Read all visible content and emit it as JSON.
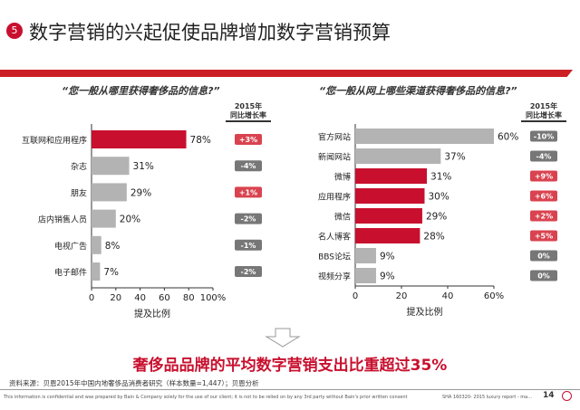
{
  "header": {
    "number": "5",
    "title": "数字营销的兴起促使品牌增加数字营销预算"
  },
  "chart_data": [
    {
      "type": "bar",
      "orientation": "horizontal",
      "title": "“您一般从哪里获得奢侈品的信息?”",
      "xlabel": "提及比例",
      "xlim": [
        0,
        100
      ],
      "xticks": [
        "0",
        "20",
        "40",
        "60",
        "80",
        "100%"
      ],
      "categories": [
        "互联网和应用程序",
        "杂志",
        "朋友",
        "店内销售人员",
        "电视广告",
        "电子邮件"
      ],
      "values": [
        78,
        31,
        29,
        20,
        8,
        7
      ],
      "labels": [
        "78%",
        "31%",
        "29%",
        "20%",
        "8%",
        "7%"
      ],
      "highlight": [
        true,
        false,
        false,
        false,
        false,
        false
      ],
      "growth_header": [
        "2015年",
        "同比增长率"
      ],
      "growth": [
        "+3%",
        "-4%",
        "+1%",
        "-2%",
        "-1%",
        "-2%"
      ]
    },
    {
      "type": "bar",
      "orientation": "horizontal",
      "title": "“您一般从网上哪些渠道获得奢侈品的信息?”",
      "xlabel": "提及比例",
      "xlim": [
        0,
        60
      ],
      "xticks": [
        "0",
        "20",
        "40",
        "60%"
      ],
      "categories": [
        "官方网站",
        "新闻网站",
        "微博",
        "应用程序",
        "微信",
        "名人博客",
        "BBS论坛",
        "视频分享"
      ],
      "values": [
        60,
        37,
        31,
        30,
        29,
        28,
        9,
        9
      ],
      "labels": [
        "60%",
        "37%",
        "31%",
        "30%",
        "29%",
        "28%",
        "9%",
        "9%"
      ],
      "highlight": [
        false,
        false,
        true,
        true,
        true,
        true,
        false,
        false
      ],
      "growth_header": [
        "2015年",
        "同比增长率"
      ],
      "growth": [
        "-10%",
        "-4%",
        "+9%",
        "+6%",
        "+2%",
        "+5%",
        "0%",
        "0%"
      ]
    }
  ],
  "colors": {
    "red": "#c8102e",
    "gray": "#b3b3b3",
    "pos_badge": "#d9434f",
    "neg_badge": "#777777"
  },
  "conclusion": "奢侈品品牌的平均数字营销支出比重超过35%",
  "source": "资料来源：贝恩2015年中国内地奢侈品消费者研究（样本数量=1,447）；贝恩分析",
  "footer": {
    "confidential": "This information is confidential and was prepared by Bain & Company solely for the use of our client; it is not to be relied on by any 3rd party without Bain's prior written consent",
    "report": "SHA 160320- 2015 luxury report - ma...",
    "page": "14"
  }
}
